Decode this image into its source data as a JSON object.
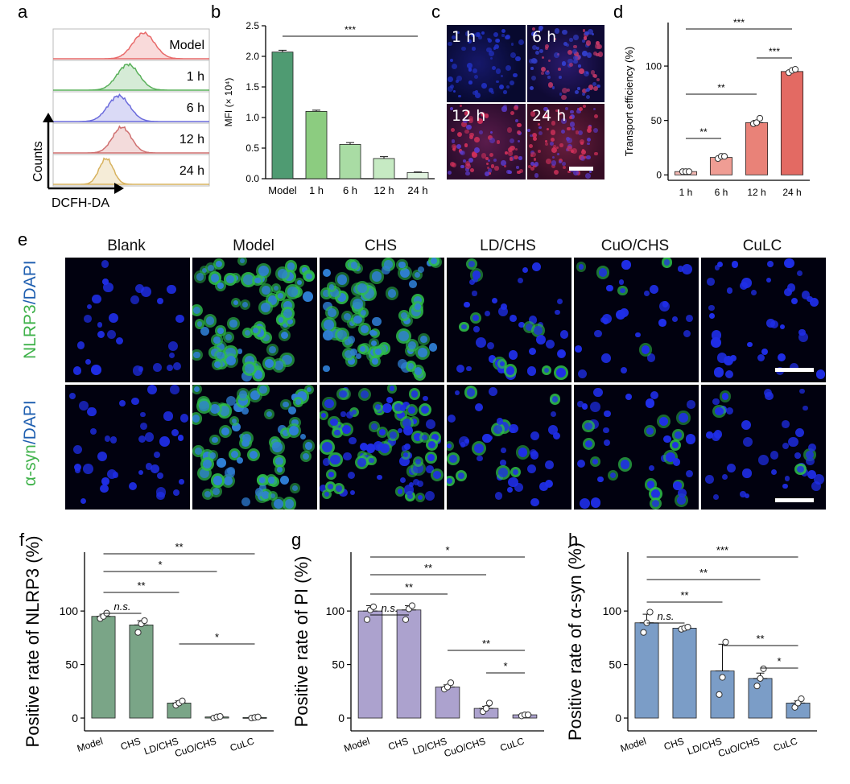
{
  "panel_labels": {
    "a": "a",
    "b": "b",
    "c": "c",
    "d": "d",
    "e": "e",
    "f": "f",
    "g": "g",
    "h": "h"
  },
  "panel_a": {
    "samples": [
      "Model",
      "1 h",
      "6 h",
      "12 h",
      "24 h"
    ],
    "ylabel": "Counts",
    "xlabel": "DCFH-DA",
    "colors": [
      "#e86a6a",
      "#59b05a",
      "#6b6bdc",
      "#cf6f6f",
      "#d7b25e"
    ]
  },
  "panel_c": {
    "labels": [
      "1 h",
      "6 h",
      "12 h",
      "24 h"
    ]
  },
  "panel_e": {
    "groups": [
      "Blank",
      "Model",
      "CHS",
      "LD/CHS",
      "CuO/CHS",
      "CuLC"
    ],
    "rows": [
      {
        "label_a": "NLRP3",
        "label_b": "/DAPI"
      },
      {
        "label_a": "α-syn",
        "label_b": "/DAPI"
      }
    ]
  },
  "chart_data": [
    {
      "id": "b",
      "type": "bar",
      "categories": [
        "Model",
        "1 h",
        "6 h",
        "12 h",
        "24 h"
      ],
      "values": [
        2.07,
        1.1,
        0.56,
        0.33,
        0.1
      ],
      "errors": [
        0.03,
        0.02,
        0.03,
        0.03,
        0.01
      ],
      "ylabel": "MFI (× 10⁴)",
      "ylim": [
        0,
        2.5
      ],
      "yticks": [
        "0.0",
        "0.5",
        "1.0",
        "1.5",
        "2.0",
        "2.5"
      ],
      "colors": [
        "#4f9b72",
        "#8ccc80",
        "#a9dca4",
        "#c6eac3",
        "#e2f4e0"
      ],
      "sig": [
        {
          "from": 0,
          "to": 4,
          "label": "***"
        }
      ]
    },
    {
      "id": "d",
      "type": "bar",
      "categories": [
        "1 h",
        "6 h",
        "12 h",
        "24 h"
      ],
      "values": [
        3,
        16,
        48,
        95
      ],
      "errors": [
        1,
        1.5,
        2,
        1.5
      ],
      "points": [
        [
          3,
          3,
          3
        ],
        [
          15,
          17,
          17
        ],
        [
          47,
          48,
          52
        ],
        [
          94,
          96,
          97
        ]
      ],
      "ylabel": "Transport efficiency (%)",
      "ylim": [
        -5,
        140
      ],
      "yticks": [
        "0",
        "50",
        "100"
      ],
      "colors": [
        "#f4b9b3",
        "#ef9d94",
        "#e98278",
        "#e36a63"
      ],
      "sig": [
        {
          "from": 0,
          "to": 3,
          "label": "***"
        },
        {
          "from": 2,
          "to": 3,
          "label": "***"
        },
        {
          "from": 0,
          "to": 2,
          "label": "**"
        },
        {
          "from": 0,
          "to": 1,
          "label": "**"
        }
      ]
    },
    {
      "id": "f",
      "type": "bar",
      "categories": [
        "Model",
        "CHS",
        "LD/CHS",
        "CuO/CHS",
        "CuLC"
      ],
      "values": [
        95,
        87,
        14,
        1,
        0.5
      ],
      "errors": [
        2,
        4,
        2,
        0.5,
        0.5
      ],
      "points": [
        [
          93,
          95,
          98
        ],
        [
          80,
          88,
          91
        ],
        [
          12,
          14,
          16
        ],
        [
          0,
          1,
          1.5
        ],
        [
          0,
          0.5,
          1
        ]
      ],
      "ylabel": "Positive rate of NLRP3 (%)",
      "ylim": [
        -12,
        155
      ],
      "yticks": [
        "0",
        "50",
        "100"
      ],
      "color": "#7aa587",
      "sig": [
        {
          "from": 0,
          "to": 4,
          "label": "**"
        },
        {
          "from": 0,
          "to": 3,
          "label": "*"
        },
        {
          "from": 0,
          "to": 2,
          "label": "**"
        },
        {
          "from": 0,
          "to": 1,
          "label": "n.s."
        },
        {
          "from": 2,
          "to": 4,
          "label": "*"
        }
      ]
    },
    {
      "id": "g",
      "type": "bar",
      "categories": [
        "Model",
        "CHS",
        "LD/CHS",
        "CuO/CHS",
        "CuLC"
      ],
      "values": [
        100,
        101,
        29,
        9,
        3
      ],
      "errors": [
        5,
        4,
        2,
        2,
        0.5
      ],
      "points": [
        [
          92,
          101,
          104
        ],
        [
          92,
          102,
          105
        ],
        [
          27,
          29,
          33
        ],
        [
          6,
          9,
          14
        ],
        [
          2,
          3,
          3
        ]
      ],
      "ylabel": "Positive rate of PI (%)",
      "ylim": [
        -12,
        155
      ],
      "yticks": [
        "0",
        "50",
        "100"
      ],
      "color": "#aca2ce",
      "sig": [
        {
          "from": 0,
          "to": 4,
          "label": "*"
        },
        {
          "from": 0,
          "to": 3,
          "label": "**"
        },
        {
          "from": 0,
          "to": 2,
          "label": "**"
        },
        {
          "from": 0,
          "to": 1,
          "label": "n.s."
        },
        {
          "from": 2,
          "to": 4,
          "label": "**"
        },
        {
          "from": 3,
          "to": 4,
          "label": "*"
        }
      ]
    },
    {
      "id": "h",
      "type": "bar",
      "categories": [
        "Model",
        "CHS",
        "LD/CHS",
        "CuO/CHS",
        "CuLC"
      ],
      "values": [
        89,
        84,
        44,
        37,
        14
      ],
      "errors": [
        8,
        1,
        25,
        5,
        2
      ],
      "points": [
        [
          80,
          89,
          99
        ],
        [
          83,
          84,
          85
        ],
        [
          22,
          38,
          71
        ],
        [
          30,
          37,
          46
        ],
        [
          10,
          14,
          18
        ]
      ],
      "ylabel": "Positive rate of α-syn (%)",
      "ylim": [
        -12,
        155
      ],
      "yticks": [
        "0",
        "50",
        "100"
      ],
      "color": "#7b9dc7",
      "sig": [
        {
          "from": 0,
          "to": 4,
          "label": "***"
        },
        {
          "from": 0,
          "to": 3,
          "label": "**"
        },
        {
          "from": 0,
          "to": 2,
          "label": "**"
        },
        {
          "from": 0,
          "to": 1,
          "label": "n.s."
        },
        {
          "from": 2,
          "to": 4,
          "label": "**"
        },
        {
          "from": 3,
          "to": 4,
          "label": "*"
        }
      ]
    }
  ]
}
